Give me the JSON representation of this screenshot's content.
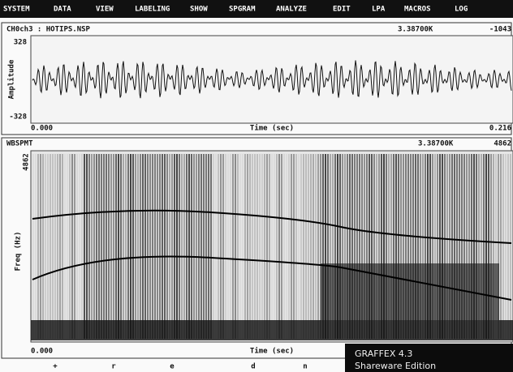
{
  "menu": [
    "SYSTEM",
    "DATA",
    "VIEW",
    "LABELING",
    "SHOW",
    "SPGRAM",
    "ANALYZE",
    "EDIT",
    "LPA",
    "MACROS",
    "LOG"
  ],
  "waveform": {
    "file": "CH0ch3 : HOTIPS.NSP",
    "cursor": "3.38700K",
    "value": "-1043",
    "y_label": "Amplitude",
    "y_max": "328",
    "y_min": "-328",
    "x_start": "0.000",
    "x_label": "Time (sec)",
    "x_end": "0.216"
  },
  "spectrogram": {
    "title": "WBSPMT",
    "cursor": "3.38700K",
    "value": "4862",
    "y_label": "Freq (Hz)",
    "y_max": "4862",
    "x_start": "0.000",
    "x_label": "Time (sec)"
  },
  "phonemes": [
    "+",
    "r",
    "e",
    "d",
    "n"
  ],
  "overlay": {
    "title": "GRAFFEX 4.3",
    "subtitle": "Shareware Edition"
  }
}
